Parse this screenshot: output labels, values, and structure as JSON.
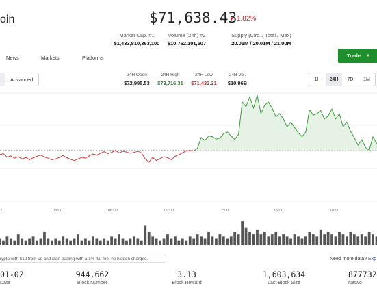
{
  "app": {
    "title": "oin"
  },
  "price": {
    "value": "$71,638.43",
    "change": "1.82%",
    "change_arrow": "▼",
    "change_color": "#c62828"
  },
  "stats": [
    {
      "label": "Market Cap. #1",
      "value": "$1,433,810,363,100"
    },
    {
      "label": "Volume (24h) #2",
      "value": "$10,762,101,507"
    },
    {
      "label": "Supply (Circ. / Total / Max)",
      "value": "20.01M / 20.01M / 21.00M"
    }
  ],
  "nav": {
    "items": [
      "News",
      "Markets",
      "Platforms"
    ]
  },
  "trade": {
    "label": "Trade",
    "caret": "▼",
    "color": "#1f8f2e"
  },
  "view_tabs": {
    "advanced": "Advanced"
  },
  "h24": [
    {
      "label": "24H Open",
      "value": "$72,995.53",
      "color": "#111111"
    },
    {
      "label": "24H High",
      "value": "$73,716.31",
      "color": "#2e7d32"
    },
    {
      "label": "24H Low",
      "value": "$71,432.31",
      "color": "#c62828"
    },
    {
      "label": "24H Vol.",
      "value": "$10.96B",
      "color": "#111111"
    }
  ],
  "ranges": [
    "1H",
    "24H",
    "7D",
    "1M"
  ],
  "active_range": "24H",
  "chart_data": {
    "type": "line",
    "x_ticks": [
      "21",
      "03:00",
      "06:00",
      "09:00",
      "12:00",
      "15:00",
      "18:00"
    ],
    "reference_line": 72995.53,
    "colors": {
      "up": "#3a9a3a",
      "down": "#d03a3a",
      "volume": "#555555"
    },
    "series": [
      {
        "values": [
          72960,
          72935,
          72950,
          72905,
          72920,
          72890,
          72910,
          72880,
          72900,
          72870,
          72895,
          72915,
          72930,
          72905,
          72890,
          72870,
          72880,
          72900,
          72925,
          72895,
          72875,
          72860,
          72880,
          72900,
          72890,
          72920,
          72945,
          72930,
          72955,
          72975,
          72950,
          72965,
          72990,
          72960,
          72980,
          72970,
          72955,
          72965,
          72980,
          72960,
          72880,
          72840,
          72900,
          72860,
          72885,
          72910,
          72895,
          72870,
          72915,
          72935,
          72960,
          72985,
          72990,
          72985,
          73020,
          73160,
          73120,
          73180,
          73170,
          73140,
          73150,
          73210,
          73230,
          73180,
          73135,
          73200,
          73620,
          73560,
          73690,
          73540,
          73710,
          73470,
          73580,
          73620,
          73540,
          73430,
          73470,
          73400,
          73300,
          73360,
          73290,
          73220,
          73170,
          73230,
          73520,
          73450,
          73470,
          73510,
          73400,
          73440,
          73530,
          73400,
          73470,
          73300,
          73360,
          73240,
          73160,
          73060,
          73130,
          73030,
          72995,
          73170,
          73080,
          73130
        ],
        "volume": [
          2,
          3,
          2,
          4,
          3,
          2,
          5,
          3,
          2,
          3,
          4,
          2,
          3,
          6,
          3,
          2,
          3,
          2,
          4,
          3,
          2,
          3,
          5,
          2,
          3,
          2,
          4,
          3,
          2,
          3,
          2,
          4,
          3,
          5,
          3,
          2,
          3,
          4,
          3,
          2,
          9,
          6,
          4,
          3,
          2,
          3,
          5,
          3,
          4,
          2,
          3,
          2,
          4,
          3,
          5,
          4,
          3,
          6,
          4,
          3,
          5,
          4,
          3,
          4,
          6,
          5,
          11,
          8,
          6,
          5,
          7,
          5,
          6,
          4,
          5,
          6,
          4,
          5,
          4,
          3,
          5,
          4,
          3,
          4,
          6,
          5,
          4,
          7,
          5,
          6,
          5,
          4,
          6,
          5,
          4,
          6,
          5,
          4,
          5,
          4,
          6,
          5,
          4,
          5
        ]
      }
    ]
  },
  "promo": {
    "text": "rypto with $10 from us and start trading with a 1% flat fee, no hidden charges."
  },
  "more_data": {
    "prefix": "Need more data? ",
    "link": "Exp"
  },
  "footer_stats": [
    {
      "value": "01-02",
      "label": "Date"
    },
    {
      "value": "944,662",
      "label": "Block Number"
    },
    {
      "value": "3.13",
      "label": "Block Reward"
    },
    {
      "value": "1,603,634",
      "label": "Last Block Size"
    },
    {
      "value": "8777326",
      "label": "Netwo"
    }
  ]
}
